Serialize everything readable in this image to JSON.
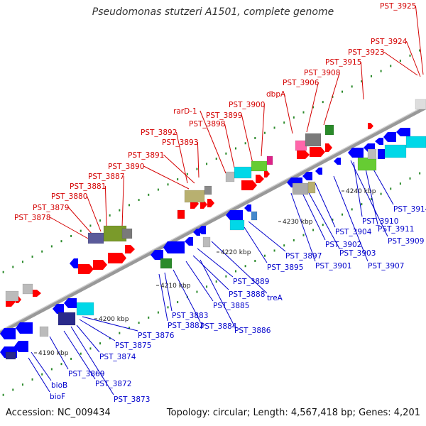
{
  "title": "Pseudomonas stutzeri A1501, complete genome",
  "accession": "Accession: NC_009434",
  "summary": "Topology: circular; Length: 4,567,418 bp; Genes: 4,201",
  "colors": {
    "top_label": "#d40000",
    "bottom_label": "#0000cc",
    "forward_gene": "#ff0000",
    "reverse_gene": "#0000ff",
    "backbone": "#999999"
  },
  "ticks": [
    "4190 kbp",
    "4200 kbp",
    "4210 kbp",
    "4220 kbp",
    "4230 kbp",
    "4240 kbp"
  ],
  "top_labels": [
    "PST_3878",
    "PST_3879",
    "PST_3880",
    "PST_3881",
    "PST_3887",
    "PST_3890",
    "PST_3891",
    "PST_3893",
    "PST_3892",
    "PST_3898",
    "rarD-1",
    "PST_3899",
    "PST_3900",
    "dbpA",
    "PST_3906",
    "PST_3908",
    "PST_3915",
    "PST_3923",
    "PST_3924",
    "PST_3925"
  ],
  "bottom_labels": [
    "bioF",
    "bioB",
    "PST_3869",
    "PST_3872",
    "PST_3873",
    "PST_3874",
    "PST_3875",
    "PST_3876",
    "PST_3882",
    "PST_3883",
    "PST_3884",
    "PST_3885",
    "PST_3886",
    "PST_3888",
    "PST_3889",
    "treA",
    "PST_3895",
    "PST_3897",
    "PST_3901",
    "PST_3902",
    "PST_3903",
    "PST_3904",
    "PST_3907",
    "PST_3909",
    "PST_3910",
    "PST_3911",
    "PST_3914"
  ]
}
